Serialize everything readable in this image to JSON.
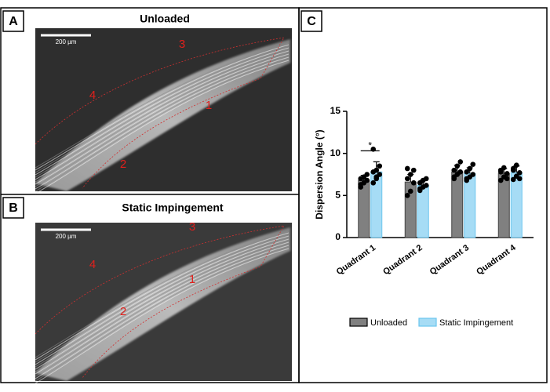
{
  "panels": [
    {
      "label": "A",
      "title": "Unloaded",
      "scale_bar": "200 µm",
      "regions": [
        "1",
        "2",
        "3",
        "4"
      ]
    },
    {
      "label": "B",
      "title": "Static Impingement",
      "scale_bar": "200 µm",
      "regions": [
        "1",
        "2",
        "3",
        "4"
      ]
    }
  ],
  "chart_panel_label": "C",
  "chart_data": {
    "type": "bar",
    "ylabel": "Dispersion Angle (°)",
    "categories": [
      "Quadrant 1",
      "Quadrant 2",
      "Quadrant 3",
      "Quadrant 4"
    ],
    "series": [
      {
        "name": "Unloaded",
        "color": "#808080",
        "values": [
          6.8,
          6.6,
          7.8,
          7.6
        ],
        "errors": [
          0.6,
          0.9,
          0.8,
          0.6
        ],
        "points": [
          [
            6.0,
            6.5,
            6.8,
            7.0,
            7.2,
            7.5,
            6.3
          ],
          [
            5.0,
            5.5,
            6.5,
            7.0,
            7.5,
            8.0,
            8.2
          ],
          [
            7.0,
            7.5,
            7.8,
            8.0,
            8.5,
            9.0,
            7.2
          ],
          [
            6.8,
            7.2,
            7.6,
            8.0,
            8.3,
            7.0,
            7.8
          ]
        ]
      },
      {
        "name": "Static Impingement",
        "color": "#a6dcf5",
        "values": [
          7.8,
          6.2,
          7.6,
          7.7
        ],
        "errors": [
          1.2,
          0.6,
          0.7,
          0.8
        ],
        "points": [
          [
            6.5,
            7.0,
            7.5,
            7.8,
            8.0,
            8.5,
            10.5,
            7.2
          ],
          [
            5.6,
            6.0,
            6.2,
            6.5,
            6.8,
            7.0,
            5.8
          ],
          [
            6.8,
            7.2,
            7.5,
            7.8,
            8.2,
            8.7,
            7.0
          ],
          [
            6.9,
            7.3,
            7.7,
            8.2,
            8.6,
            7.0,
            8.0
          ]
        ]
      }
    ],
    "ylim": [
      0,
      15
    ],
    "yticks": [
      0,
      5,
      10,
      15
    ],
    "annotations": [
      {
        "text": "*"
      }
    ]
  }
}
